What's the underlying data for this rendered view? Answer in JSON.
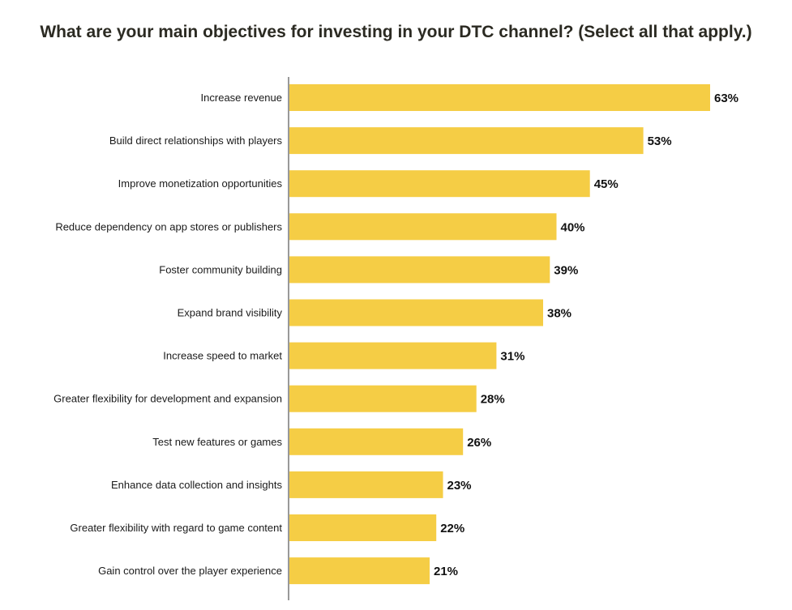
{
  "chart_data": {
    "type": "bar",
    "orientation": "horizontal",
    "title": "What are your main objectives for investing in your DTC channel? (Select all that apply.)",
    "xlabel": "",
    "ylabel": "",
    "categories": [
      "Increase revenue",
      "Build direct relationships with players",
      "Improve monetization opportunities",
      "Reduce dependency on app stores or publishers",
      "Foster community building",
      "Expand brand visibility",
      "Increase speed to market",
      "Greater flexibility for development and expansion",
      "Test new features or games",
      "Enhance data collection and insights",
      "Greater flexibility with regard to game content",
      "Gain control over the player experience"
    ],
    "values": [
      63,
      53,
      45,
      40,
      39,
      38,
      31,
      28,
      26,
      23,
      22,
      21
    ],
    "value_labels": [
      "63%",
      "53%",
      "45%",
      "40%",
      "39%",
      "38%",
      "31%",
      "28%",
      "26%",
      "23%",
      "22%",
      "21%"
    ],
    "unit": "%",
    "xlim": [
      0,
      63
    ],
    "grid": false,
    "legend": "none",
    "colors": {
      "bar": "#F5CD45",
      "axis": "#333333",
      "title": "#2b2a22",
      "text": "#1a1a1a"
    }
  }
}
